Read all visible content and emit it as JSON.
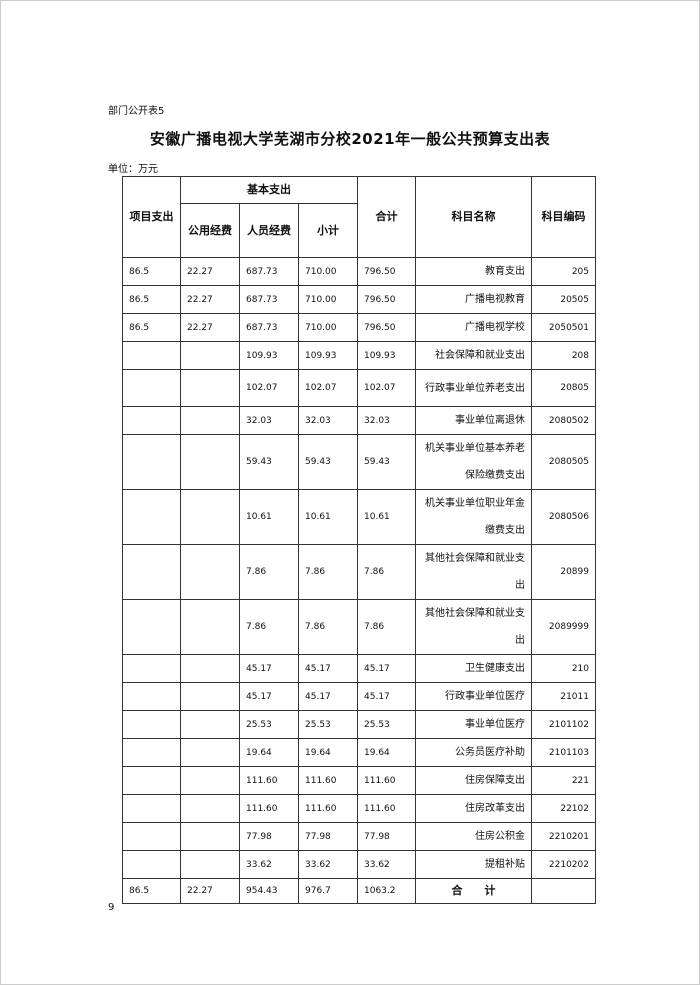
{
  "doc_label": "部门公开表5",
  "title": "安徽广播电视大学芜湖市分校2021年一般公共预算支出表",
  "unit": "单位：万元",
  "headers": {
    "code": "科目编码",
    "name": "科目名称",
    "total": "合计",
    "basic": "基本支出",
    "subtotal": "小计",
    "personnel": "人员经费",
    "public": "公用经费",
    "project": "项目支出"
  },
  "rows": [
    {
      "code": "205",
      "name": "教育支出",
      "total": "796.50",
      "subtotal": "710.00",
      "personnel": "687.73",
      "public": "22.27",
      "project": "86.5"
    },
    {
      "code": "20505",
      "name": "广播电视教育",
      "total": "796.50",
      "subtotal": "710.00",
      "personnel": "687.73",
      "public": "22.27",
      "project": "86.5"
    },
    {
      "code": "2050501",
      "name": "广播电视学校",
      "total": "796.50",
      "subtotal": "710.00",
      "personnel": "687.73",
      "public": "22.27",
      "project": "86.5"
    },
    {
      "code": "208",
      "name": "社会保障和就业支出",
      "total": "109.93",
      "subtotal": "109.93",
      "personnel": "109.93",
      "public": "",
      "project": ""
    },
    {
      "code": "20805",
      "name": "行政事业单位养老支出",
      "total": "102.07",
      "subtotal": "102.07",
      "personnel": "102.07",
      "public": "",
      "project": ""
    },
    {
      "code": "2080502",
      "name": "事业单位离退休",
      "total": "32.03",
      "subtotal": "32.03",
      "personnel": "32.03",
      "public": "",
      "project": ""
    },
    {
      "code": "2080505",
      "name": "机关事业单位基本养老保险缴费支出",
      "total": "59.43",
      "subtotal": "59.43",
      "personnel": "59.43",
      "public": "",
      "project": ""
    },
    {
      "code": "2080506",
      "name": "机关事业单位职业年金缴费支出",
      "total": "10.61",
      "subtotal": "10.61",
      "personnel": "10.61",
      "public": "",
      "project": ""
    },
    {
      "code": "20899",
      "name": "其他社会保障和就业支出",
      "total": "7.86",
      "subtotal": "7.86",
      "personnel": "7.86",
      "public": "",
      "project": ""
    },
    {
      "code": "2089999",
      "name": "其他社会保障和就业支出",
      "total": "7.86",
      "subtotal": "7.86",
      "personnel": "7.86",
      "public": "",
      "project": ""
    },
    {
      "code": "210",
      "name": "卫生健康支出",
      "total": "45.17",
      "subtotal": "45.17",
      "personnel": "45.17",
      "public": "",
      "project": ""
    },
    {
      "code": "21011",
      "name": "行政事业单位医疗",
      "total": "45.17",
      "subtotal": "45.17",
      "personnel": "45.17",
      "public": "",
      "project": ""
    },
    {
      "code": "2101102",
      "name": "事业单位医疗",
      "total": "25.53",
      "subtotal": "25.53",
      "personnel": "25.53",
      "public": "",
      "project": ""
    },
    {
      "code": "2101103",
      "name": "公务员医疗补助",
      "total": "19.64",
      "subtotal": "19.64",
      "personnel": "19.64",
      "public": "",
      "project": ""
    },
    {
      "code": "221",
      "name": "住房保障支出",
      "total": "111.60",
      "subtotal": "111.60",
      "personnel": "111.60",
      "public": "",
      "project": ""
    },
    {
      "code": "22102",
      "name": "住房改革支出",
      "total": "111.60",
      "subtotal": "111.60",
      "personnel": "111.60",
      "public": "",
      "project": ""
    },
    {
      "code": "2210201",
      "name": "住房公积金",
      "total": "77.98",
      "subtotal": "77.98",
      "personnel": "77.98",
      "public": "",
      "project": ""
    },
    {
      "code": "2210202",
      "name": "提租补贴",
      "total": "33.62",
      "subtotal": "33.62",
      "personnel": "33.62",
      "public": "",
      "project": ""
    }
  ],
  "totals": {
    "label": "合　　计",
    "total": "1063.2",
    "subtotal": "976.7",
    "personnel": "954.43",
    "public": "22.27",
    "project": "86.5"
  },
  "page_number": "9"
}
